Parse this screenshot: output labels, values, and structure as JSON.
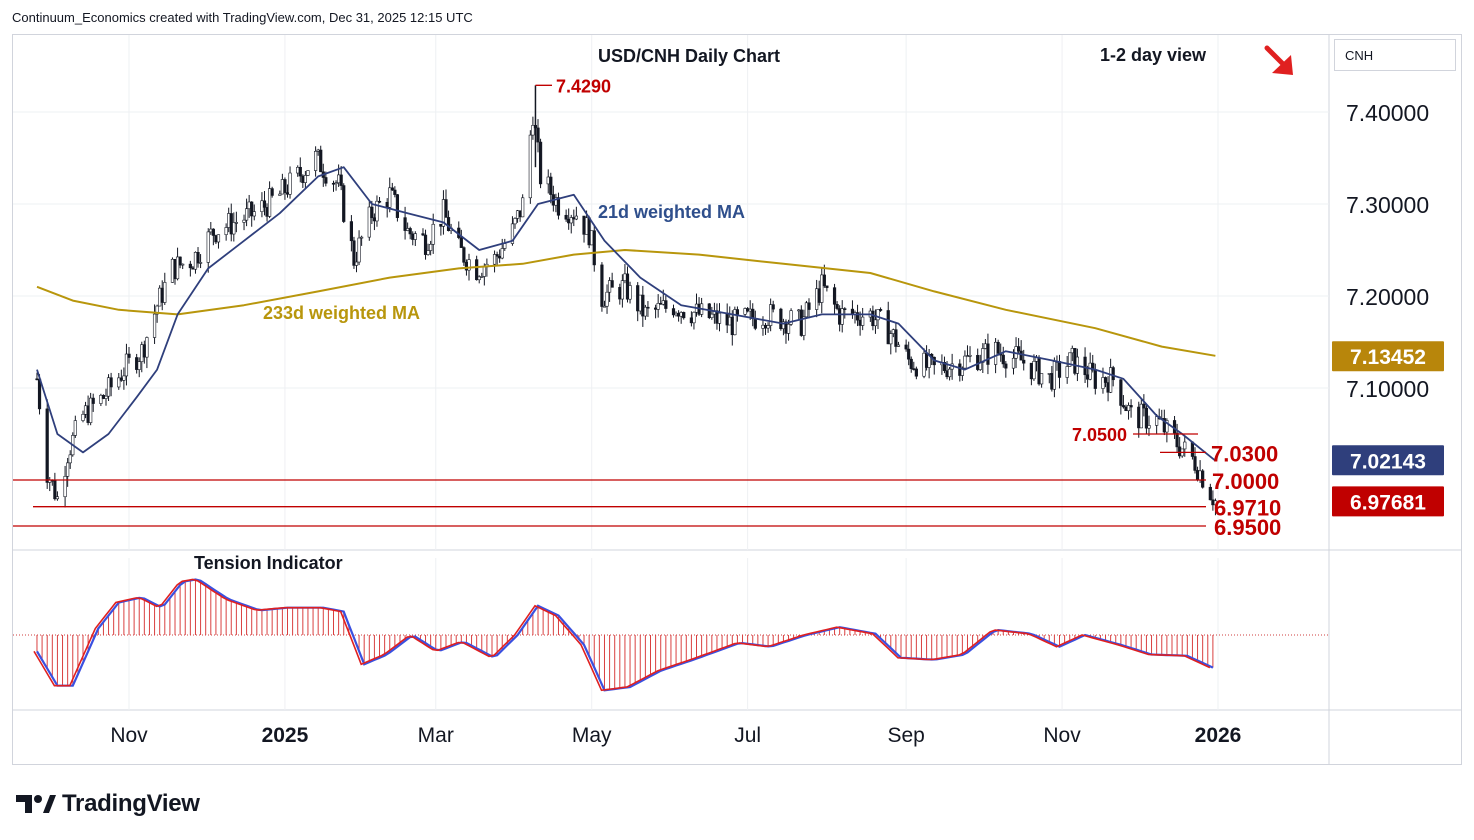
{
  "header": {
    "credit": "Continuum_Economics created with TradingView.com, Dec 31, 2025 12:15 UTC"
  },
  "symbol": "CNH",
  "brand": "TradingView",
  "chart_data": {
    "type": "candlestick",
    "title": "USD/CNH Daily Chart",
    "annotation_view": "1-2 day view",
    "view_direction": "down",
    "ylim": [
      6.93,
      7.46
    ],
    "y_ticks": [
      "7.40000",
      "7.30000",
      "7.20000",
      "7.10000"
    ],
    "x_ticks": [
      {
        "label": "Nov",
        "date": "2024-11-01",
        "bold": false
      },
      {
        "label": "2025",
        "date": "2025-01-01",
        "bold": true
      },
      {
        "label": "Mar",
        "date": "2025-03-01",
        "bold": false
      },
      {
        "label": "May",
        "date": "2025-05-01",
        "bold": false
      },
      {
        "label": "Jul",
        "date": "2025-07-01",
        "bold": false
      },
      {
        "label": "Sep",
        "date": "2025-09-01",
        "bold": false
      },
      {
        "label": "Nov",
        "date": "2025-11-01",
        "bold": false
      },
      {
        "label": "2026",
        "date": "2026-01-01",
        "bold": true
      }
    ],
    "price_path": [
      {
        "date": "2024-09-26",
        "value": 7.11
      },
      {
        "date": "2024-09-30",
        "value": 7.01
      },
      {
        "date": "2024-10-04",
        "value": 6.98
      },
      {
        "date": "2024-10-08",
        "value": 7.03
      },
      {
        "date": "2024-10-14",
        "value": 7.07
      },
      {
        "date": "2024-10-22",
        "value": 7.09
      },
      {
        "date": "2024-10-30",
        "value": 7.12
      },
      {
        "date": "2024-11-06",
        "value": 7.14
      },
      {
        "date": "2024-11-12",
        "value": 7.19
      },
      {
        "date": "2024-11-18",
        "value": 7.23
      },
      {
        "date": "2024-11-26",
        "value": 7.24
      },
      {
        "date": "2024-12-04",
        "value": 7.27
      },
      {
        "date": "2024-12-12",
        "value": 7.28
      },
      {
        "date": "2024-12-20",
        "value": 7.29
      },
      {
        "date": "2024-12-30",
        "value": 7.31
      },
      {
        "date": "2025-01-06",
        "value": 7.33
      },
      {
        "date": "2025-01-13",
        "value": 7.35
      },
      {
        "date": "2025-01-22",
        "value": 7.32
      },
      {
        "date": "2025-01-28",
        "value": 7.24
      },
      {
        "date": "2025-02-04",
        "value": 7.29
      },
      {
        "date": "2025-02-11",
        "value": 7.31
      },
      {
        "date": "2025-02-18",
        "value": 7.27
      },
      {
        "date": "2025-02-25",
        "value": 7.26
      },
      {
        "date": "2025-03-04",
        "value": 7.29
      },
      {
        "date": "2025-03-10",
        "value": 7.25
      },
      {
        "date": "2025-03-17",
        "value": 7.23
      },
      {
        "date": "2025-03-24",
        "value": 7.24
      },
      {
        "date": "2025-03-31",
        "value": 7.27
      },
      {
        "date": "2025-04-04",
        "value": 7.3
      },
      {
        "date": "2025-04-08",
        "value": 7.4
      },
      {
        "date": "2025-04-11",
        "value": 7.33
      },
      {
        "date": "2025-04-18",
        "value": 7.3
      },
      {
        "date": "2025-04-25",
        "value": 7.29
      },
      {
        "date": "2025-04-30",
        "value": 7.27
      },
      {
        "date": "2025-05-05",
        "value": 7.2
      },
      {
        "date": "2025-05-14",
        "value": 7.21
      },
      {
        "date": "2025-05-22",
        "value": 7.18
      },
      {
        "date": "2025-06-02",
        "value": 7.19
      },
      {
        "date": "2025-06-12",
        "value": 7.18
      },
      {
        "date": "2025-06-25",
        "value": 7.17
      },
      {
        "date": "2025-07-08",
        "value": 7.18
      },
      {
        "date": "2025-07-22",
        "value": 7.17
      },
      {
        "date": "2025-07-30",
        "value": 7.21
      },
      {
        "date": "2025-08-06",
        "value": 7.18
      },
      {
        "date": "2025-08-18",
        "value": 7.18
      },
      {
        "date": "2025-08-26",
        "value": 7.16
      },
      {
        "date": "2025-09-02",
        "value": 7.13
      },
      {
        "date": "2025-09-12",
        "value": 7.12
      },
      {
        "date": "2025-09-24",
        "value": 7.13
      },
      {
        "date": "2025-10-06",
        "value": 7.14
      },
      {
        "date": "2025-10-16",
        "value": 7.13
      },
      {
        "date": "2025-10-27",
        "value": 7.11
      },
      {
        "date": "2025-11-05",
        "value": 7.13
      },
      {
        "date": "2025-11-14",
        "value": 7.11
      },
      {
        "date": "2025-11-21",
        "value": 7.11
      },
      {
        "date": "2025-11-28",
        "value": 7.07
      },
      {
        "date": "2025-12-08",
        "value": 7.065
      },
      {
        "date": "2025-12-16",
        "value": 7.04
      },
      {
        "date": "2025-12-23",
        "value": 7.02
      },
      {
        "date": "2025-12-31",
        "value": 6.977
      }
    ],
    "wma21": [
      {
        "date": "2024-09-26",
        "value": 7.12
      },
      {
        "date": "2024-10-04",
        "value": 7.05
      },
      {
        "date": "2024-10-14",
        "value": 7.03
      },
      {
        "date": "2024-10-24",
        "value": 7.05
      },
      {
        "date": "2024-11-04",
        "value": 7.09
      },
      {
        "date": "2024-11-12",
        "value": 7.12
      },
      {
        "date": "2024-11-20",
        "value": 7.18
      },
      {
        "date": "2024-12-02",
        "value": 7.23
      },
      {
        "date": "2024-12-16",
        "value": 7.26
      },
      {
        "date": "2024-12-30",
        "value": 7.29
      },
      {
        "date": "2025-01-14",
        "value": 7.33
      },
      {
        "date": "2025-01-24",
        "value": 7.34
      },
      {
        "date": "2025-02-04",
        "value": 7.3
      },
      {
        "date": "2025-02-18",
        "value": 7.29
      },
      {
        "date": "2025-03-04",
        "value": 7.28
      },
      {
        "date": "2025-03-18",
        "value": 7.25
      },
      {
        "date": "2025-03-31",
        "value": 7.26
      },
      {
        "date": "2025-04-10",
        "value": 7.3
      },
      {
        "date": "2025-04-24",
        "value": 7.31
      },
      {
        "date": "2025-05-06",
        "value": 7.26
      },
      {
        "date": "2025-05-20",
        "value": 7.22
      },
      {
        "date": "2025-06-05",
        "value": 7.19
      },
      {
        "date": "2025-06-25",
        "value": 7.18
      },
      {
        "date": "2025-07-15",
        "value": 7.17
      },
      {
        "date": "2025-07-30",
        "value": 7.18
      },
      {
        "date": "2025-08-18",
        "value": 7.18
      },
      {
        "date": "2025-08-29",
        "value": 7.17
      },
      {
        "date": "2025-09-12",
        "value": 7.13
      },
      {
        "date": "2025-09-24",
        "value": 7.12
      },
      {
        "date": "2025-10-10",
        "value": 7.14
      },
      {
        "date": "2025-10-28",
        "value": 7.13
      },
      {
        "date": "2025-11-14",
        "value": 7.12
      },
      {
        "date": "2025-11-25",
        "value": 7.11
      },
      {
        "date": "2025-12-08",
        "value": 7.07
      },
      {
        "date": "2025-12-18",
        "value": 7.05
      },
      {
        "date": "2025-12-31",
        "value": 7.021
      }
    ],
    "wma233": [
      {
        "date": "2024-09-26",
        "value": 7.21
      },
      {
        "date": "2024-10-10",
        "value": 7.195
      },
      {
        "date": "2024-10-28",
        "value": 7.185
      },
      {
        "date": "2024-11-20",
        "value": 7.18
      },
      {
        "date": "2024-12-16",
        "value": 7.19
      },
      {
        "date": "2025-01-14",
        "value": 7.205
      },
      {
        "date": "2025-02-11",
        "value": 7.22
      },
      {
        "date": "2025-03-10",
        "value": 7.23
      },
      {
        "date": "2025-04-04",
        "value": 7.235
      },
      {
        "date": "2025-04-24",
        "value": 7.245
      },
      {
        "date": "2025-05-14",
        "value": 7.25
      },
      {
        "date": "2025-06-12",
        "value": 7.245
      },
      {
        "date": "2025-07-15",
        "value": 7.235
      },
      {
        "date": "2025-08-18",
        "value": 7.225
      },
      {
        "date": "2025-09-12",
        "value": 7.205
      },
      {
        "date": "2025-10-10",
        "value": 7.185
      },
      {
        "date": "2025-11-14",
        "value": 7.165
      },
      {
        "date": "2025-12-10",
        "value": 7.145
      },
      {
        "date": "2025-12-31",
        "value": 7.135
      }
    ],
    "ma_labels": {
      "ma21": "21d weighted MA",
      "ma233": "233d weighted MA"
    },
    "price_tags": [
      {
        "text": "7.13452",
        "value": 7.13452,
        "color": "#b8860b"
      },
      {
        "text": "7.02143",
        "value": 7.02143,
        "color": "#2f3f7c"
      },
      {
        "text": "6.97681",
        "value": 6.97681,
        "color": "#c00000"
      }
    ],
    "horizontal_levels": [
      {
        "label": "7.0000",
        "value": 7.0
      },
      {
        "label": "6.9710",
        "value": 6.971
      },
      {
        "label": "6.9500",
        "value": 6.95
      }
    ],
    "segment_levels": [
      {
        "label": "7.0500",
        "value": 7.05
      },
      {
        "label": "7.0300",
        "value": 7.03
      },
      {
        "label": "7.4290",
        "value": 7.429
      }
    ],
    "tension_indicator": {
      "title": "Tension Indicator",
      "series": [
        {
          "date": "2024-09-26",
          "value": -0.25
        },
        {
          "date": "2024-10-04",
          "value": -0.78
        },
        {
          "date": "2024-10-10",
          "value": -0.78
        },
        {
          "date": "2024-10-20",
          "value": 0.1
        },
        {
          "date": "2024-10-28",
          "value": 0.5
        },
        {
          "date": "2024-11-06",
          "value": 0.58
        },
        {
          "date": "2024-11-14",
          "value": 0.42
        },
        {
          "date": "2024-11-22",
          "value": 0.82
        },
        {
          "date": "2024-11-28",
          "value": 0.86
        },
        {
          "date": "2024-12-10",
          "value": 0.55
        },
        {
          "date": "2024-12-22",
          "value": 0.38
        },
        {
          "date": "2025-01-02",
          "value": 0.42
        },
        {
          "date": "2025-01-16",
          "value": 0.42
        },
        {
          "date": "2025-01-24",
          "value": 0.36
        },
        {
          "date": "2025-02-01",
          "value": -0.45
        },
        {
          "date": "2025-02-10",
          "value": -0.3
        },
        {
          "date": "2025-02-20",
          "value": 0.0
        },
        {
          "date": "2025-03-02",
          "value": -0.25
        },
        {
          "date": "2025-03-12",
          "value": -0.1
        },
        {
          "date": "2025-03-24",
          "value": -0.35
        },
        {
          "date": "2025-04-02",
          "value": 0.0
        },
        {
          "date": "2025-04-10",
          "value": 0.45
        },
        {
          "date": "2025-04-18",
          "value": 0.3
        },
        {
          "date": "2025-04-28",
          "value": -0.15
        },
        {
          "date": "2025-05-06",
          "value": -0.85
        },
        {
          "date": "2025-05-16",
          "value": -0.8
        },
        {
          "date": "2025-05-28",
          "value": -0.55
        },
        {
          "date": "2025-06-12",
          "value": -0.35
        },
        {
          "date": "2025-06-28",
          "value": -0.12
        },
        {
          "date": "2025-07-10",
          "value": -0.18
        },
        {
          "date": "2025-07-24",
          "value": 0.0
        },
        {
          "date": "2025-08-06",
          "value": 0.12
        },
        {
          "date": "2025-08-20",
          "value": 0.02
        },
        {
          "date": "2025-08-30",
          "value": -0.35
        },
        {
          "date": "2025-09-12",
          "value": -0.38
        },
        {
          "date": "2025-09-24",
          "value": -0.3
        },
        {
          "date": "2025-10-06",
          "value": 0.08
        },
        {
          "date": "2025-10-20",
          "value": 0.02
        },
        {
          "date": "2025-10-31",
          "value": -0.18
        },
        {
          "date": "2025-11-10",
          "value": 0.0
        },
        {
          "date": "2025-11-24",
          "value": -0.15
        },
        {
          "date": "2025-12-06",
          "value": -0.3
        },
        {
          "date": "2025-12-20",
          "value": -0.32
        },
        {
          "date": "2025-12-31",
          "value": -0.52
        }
      ]
    }
  }
}
